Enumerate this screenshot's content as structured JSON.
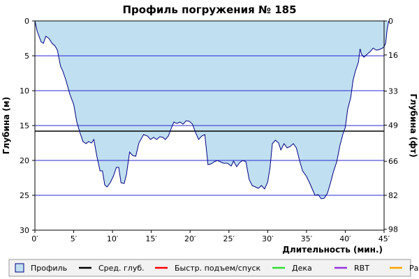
{
  "chart_data": {
    "type": "area",
    "title": "Профиль погружения № 185",
    "xlabel": "Длительность (мин.)",
    "ylabel_left": "Глубина (м)",
    "ylabel_right": "Глубина (фт)",
    "x_range": [
      0,
      45
    ],
    "y_range": [
      0,
      30
    ],
    "y_inverted": true,
    "x_ticks": [
      0,
      5,
      10,
      15,
      20,
      25,
      30,
      35,
      40,
      45
    ],
    "x_tick_labels": [
      "0′",
      "5′",
      "10′",
      "15′",
      "20′",
      "25′",
      "30′",
      "35′",
      "40′",
      "45′"
    ],
    "y_ticks_left": [
      0,
      5,
      10,
      15,
      20,
      25,
      30
    ],
    "y_tick_labels_left": [
      "0",
      "5",
      "10",
      "15",
      "20",
      "25",
      "30"
    ],
    "y_ticks_right_depth_m": [
      0,
      4.88,
      10.06,
      14.94,
      20.12,
      25.0,
      29.87
    ],
    "y_tick_labels_right": [
      "0",
      "16",
      "33",
      "49",
      "66",
      "82",
      "98"
    ],
    "grid_horizontal_depths": [
      5,
      10,
      15,
      20,
      25
    ],
    "average_depth_m": 15.8,
    "colors": {
      "area_fill": "#c0dff0",
      "profile_line": "#000080",
      "grid": "#2a2ad6",
      "average_line": "#000000",
      "fast_ascent": "#ff0000",
      "deco": "#33dd33",
      "rbt": "#9933dd",
      "work": "#ffa500"
    },
    "series": [
      {
        "name": "Профиль",
        "points": [
          [
            0,
            0
          ],
          [
            0.3,
            1.5
          ],
          [
            0.8,
            3
          ],
          [
            1.1,
            3.2
          ],
          [
            1.4,
            2.2
          ],
          [
            1.8,
            2.5
          ],
          [
            2.2,
            3.2
          ],
          [
            2.6,
            3.6
          ],
          [
            2.9,
            4.2
          ],
          [
            3.3,
            6.5
          ],
          [
            3.6,
            7.2
          ],
          [
            4.0,
            8.5
          ],
          [
            4.5,
            10.5
          ],
          [
            5.0,
            12.0
          ],
          [
            5.4,
            14.5
          ],
          [
            5.8,
            16
          ],
          [
            6.2,
            17.3
          ],
          [
            6.6,
            17.6
          ],
          [
            6.9,
            17.3
          ],
          [
            7.3,
            17.5
          ],
          [
            7.6,
            17.0
          ],
          [
            8.0,
            19.5
          ],
          [
            8.4,
            21.5
          ],
          [
            8.7,
            21.5
          ],
          [
            9.0,
            23.5
          ],
          [
            9.3,
            23.8
          ],
          [
            9.7,
            23.2
          ],
          [
            10.1,
            22.3
          ],
          [
            10.5,
            21.0
          ],
          [
            10.8,
            21.0
          ],
          [
            11.1,
            23.2
          ],
          [
            11.5,
            23.3
          ],
          [
            11.8,
            22.0
          ],
          [
            12.2,
            18.8
          ],
          [
            12.6,
            19.3
          ],
          [
            13.0,
            19.4
          ],
          [
            13.4,
            17.5
          ],
          [
            14.0,
            16.3
          ],
          [
            14.5,
            16.5
          ],
          [
            14.9,
            17.0
          ],
          [
            15.3,
            16.7
          ],
          [
            15.7,
            17.0
          ],
          [
            16.1,
            16.6
          ],
          [
            16.5,
            16.7
          ],
          [
            16.8,
            17.0
          ],
          [
            17.2,
            16.5
          ],
          [
            17.6,
            15.3
          ],
          [
            17.9,
            14.5
          ],
          [
            18.3,
            14.7
          ],
          [
            18.7,
            14.5
          ],
          [
            19.1,
            14.8
          ],
          [
            19.5,
            14.3
          ],
          [
            19.9,
            14.4
          ],
          [
            20.3,
            14.8
          ],
          [
            20.7,
            16.0
          ],
          [
            21.1,
            17.0
          ],
          [
            21.5,
            16.5
          ],
          [
            21.9,
            16.3
          ],
          [
            22.3,
            20.6
          ],
          [
            22.7,
            20.5
          ],
          [
            23.1,
            20.2
          ],
          [
            23.5,
            20.0
          ],
          [
            23.9,
            20.2
          ],
          [
            24.3,
            20.4
          ],
          [
            24.8,
            20.4
          ],
          [
            25.3,
            20.8
          ],
          [
            25.6,
            20.1
          ],
          [
            26.0,
            20.9
          ],
          [
            26.4,
            20.3
          ],
          [
            26.8,
            20.0
          ],
          [
            27.2,
            20.2
          ],
          [
            27.6,
            22.7
          ],
          [
            28.0,
            23.6
          ],
          [
            28.4,
            23.8
          ],
          [
            28.8,
            24.0
          ],
          [
            29.2,
            23.6
          ],
          [
            29.6,
            24.1
          ],
          [
            30.0,
            23.1
          ],
          [
            30.3,
            21.0
          ],
          [
            30.6,
            17.6
          ],
          [
            31.0,
            17.1
          ],
          [
            31.4,
            17.5
          ],
          [
            31.7,
            18.5
          ],
          [
            32.1,
            17.6
          ],
          [
            32.5,
            18.2
          ],
          [
            32.9,
            18.0
          ],
          [
            33.3,
            17.6
          ],
          [
            33.7,
            18.2
          ],
          [
            34.1,
            20.0
          ],
          [
            34.5,
            21.5
          ],
          [
            35.0,
            22.3
          ],
          [
            35.4,
            23.2
          ],
          [
            35.7,
            24.0
          ],
          [
            36.1,
            25.0
          ],
          [
            36.5,
            24.9
          ],
          [
            36.9,
            25.5
          ],
          [
            37.3,
            25.4
          ],
          [
            37.7,
            24.7
          ],
          [
            38.1,
            23.2
          ],
          [
            38.5,
            21.5
          ],
          [
            38.9,
            20.2
          ],
          [
            39.3,
            17.9
          ],
          [
            39.7,
            16.2
          ],
          [
            40.0,
            15.3
          ],
          [
            40.3,
            12.7
          ],
          [
            40.7,
            11.0
          ],
          [
            41.0,
            8.5
          ],
          [
            41.3,
            7.2
          ],
          [
            41.7,
            5.9
          ],
          [
            41.9,
            4.0
          ],
          [
            42.1,
            4.8
          ],
          [
            42.4,
            5.2
          ],
          [
            42.8,
            4.8
          ],
          [
            43.2,
            4.4
          ],
          [
            43.6,
            3.9
          ],
          [
            44.0,
            4.2
          ],
          [
            44.4,
            4.1
          ],
          [
            44.8,
            3.9
          ],
          [
            45.0,
            3.7
          ],
          [
            45.2,
            3.2
          ],
          [
            45.4,
            1.2
          ],
          [
            45.6,
            0
          ]
        ]
      }
    ],
    "legend": {
      "position": "bottom",
      "items": [
        {
          "label": "Профиль",
          "kind": "box",
          "color": "#c0dff0"
        },
        {
          "label": "Сред. глуб.",
          "kind": "line",
          "color": "#000000"
        },
        {
          "label": "Быстр. подъем/спуск",
          "kind": "line",
          "color": "#ff0000"
        },
        {
          "label": "Дека",
          "kind": "line",
          "color": "#33dd33"
        },
        {
          "label": "RBT",
          "kind": "line",
          "color": "#9933dd"
        },
        {
          "label": "Раб.",
          "kind": "line",
          "color": "#ffa500"
        }
      ]
    }
  }
}
